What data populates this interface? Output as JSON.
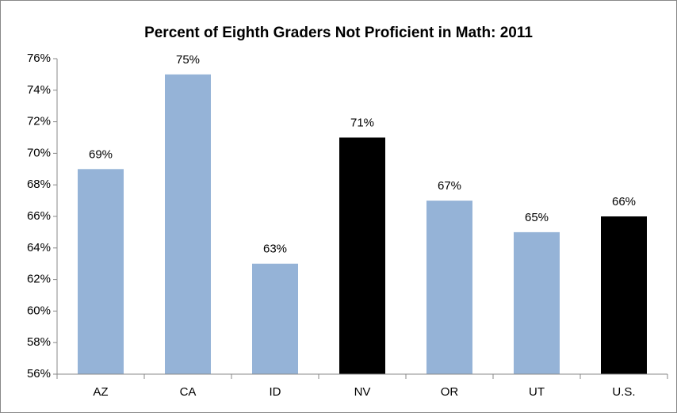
{
  "chart_data": {
    "type": "bar",
    "title": "Percent of Eighth Graders Not Proficient in Math: 2011",
    "categories": [
      "AZ",
      "CA",
      "ID",
      "NV",
      "OR",
      "UT",
      "U.S."
    ],
    "values": [
      69,
      75,
      63,
      71,
      67,
      65,
      66
    ],
    "value_labels": [
      "69%",
      "75%",
      "63%",
      "71%",
      "67%",
      "65%",
      "66%"
    ],
    "colors": [
      "#95b3d7",
      "#95b3d7",
      "#95b3d7",
      "#000000",
      "#95b3d7",
      "#95b3d7",
      "#000000"
    ],
    "ylim": [
      56,
      76
    ],
    "yticks": [
      {
        "value": 56,
        "label": "56%"
      },
      {
        "value": 58,
        "label": "58%"
      },
      {
        "value": 60,
        "label": "60%"
      },
      {
        "value": 62,
        "label": "62%"
      },
      {
        "value": 64,
        "label": "64%"
      },
      {
        "value": 66,
        "label": "66%"
      },
      {
        "value": 68,
        "label": "68%"
      },
      {
        "value": 70,
        "label": "70%"
      },
      {
        "value": 72,
        "label": "72%"
      },
      {
        "value": 74,
        "label": "74%"
      },
      {
        "value": 76,
        "label": "76%"
      }
    ],
    "grid": false
  }
}
